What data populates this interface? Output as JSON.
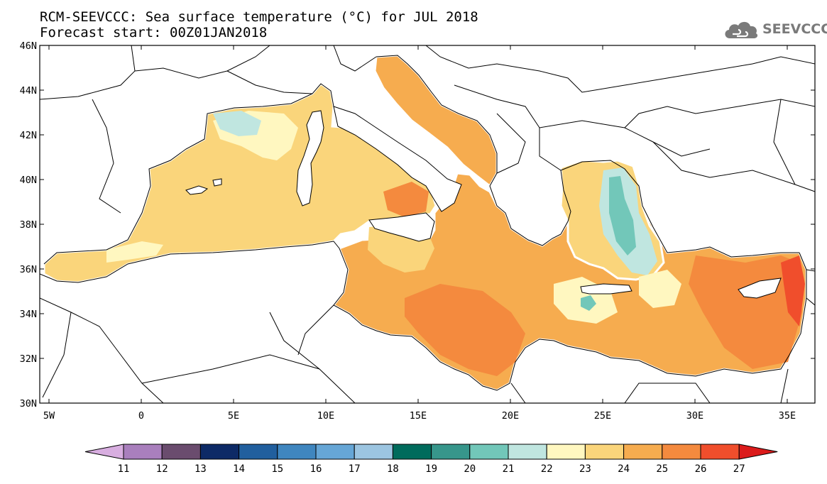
{
  "header": {
    "title": "RCM-SEEVCCC: Sea surface temperature (°C) for JUL 2018",
    "subtitle": "Forecast start: 00Z01JAN2018",
    "logo_text": "SEEVCCC"
  },
  "map": {
    "lon_range": [
      -5.5,
      36.5
    ],
    "lat_range": [
      30,
      46
    ],
    "x_ticks": [
      "5W",
      "0",
      "5E",
      "10E",
      "15E",
      "20E",
      "25E",
      "30E",
      "35E"
    ],
    "x_tick_values": [
      -5,
      0,
      5,
      10,
      15,
      20,
      25,
      30,
      35
    ],
    "y_ticks": [
      "30N",
      "32N",
      "34N",
      "36N",
      "38N",
      "40N",
      "42N",
      "44N",
      "46N"
    ],
    "y_tick_values": [
      30,
      32,
      34,
      36,
      38,
      40,
      42,
      44,
      46
    ],
    "land_color": "#ffffff",
    "border_color": "#000000"
  },
  "colorbar": {
    "labels": [
      "11",
      "12",
      "13",
      "14",
      "15",
      "16",
      "17",
      "18",
      "19",
      "20",
      "21",
      "22",
      "23",
      "24",
      "25",
      "26",
      "27"
    ],
    "colors": [
      "#d8aee0",
      "#a97fbd",
      "#6a4c6e",
      "#0d2a66",
      "#215f9e",
      "#3f86bf",
      "#66a6d6",
      "#9cc5e1",
      "#006b5c",
      "#37968b",
      "#72c7b9",
      "#c0e6e0",
      "#fff7c0",
      "#fad57b",
      "#f6ac4f",
      "#f48a3e",
      "#f04e2c",
      "#db1b1b"
    ]
  }
}
